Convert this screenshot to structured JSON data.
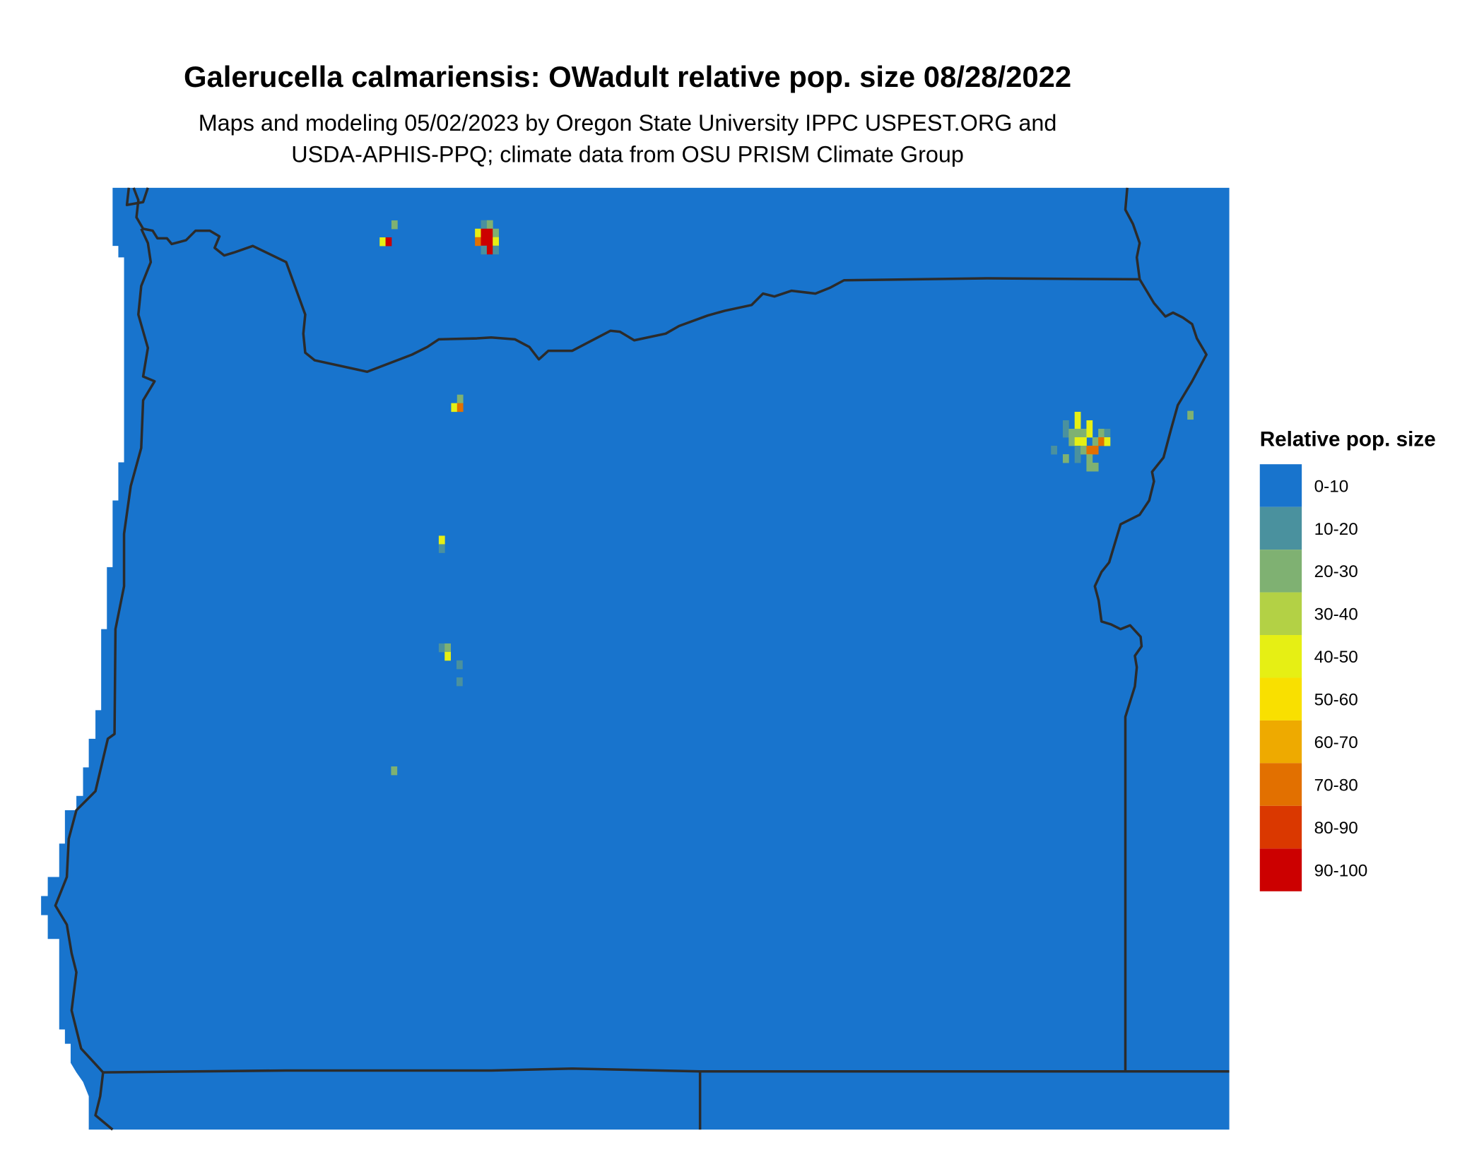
{
  "title": "Galerucella calmariensis: OWadult relative pop. size 08/28/2022",
  "subtitle_line1": "Maps and modeling 05/02/2023 by Oregon State University IPPC USPEST.ORG and",
  "subtitle_line2": "USDA-APHIS-PPQ; climate data from OSU PRISM Climate Group",
  "legend": {
    "title": "Relative pop. size",
    "items": [
      {
        "label": "0-10",
        "color": "#1874CD"
      },
      {
        "label": "10-20",
        "color": "#4A919E"
      },
      {
        "label": "20-30",
        "color": "#7FB172"
      },
      {
        "label": "30-40",
        "color": "#B3D145"
      },
      {
        "label": "40-50",
        "color": "#E6EF14"
      },
      {
        "label": "50-60",
        "color": "#F9E000"
      },
      {
        "label": "60-70",
        "color": "#EEAA00"
      },
      {
        "label": "70-80",
        "color": "#E27000"
      },
      {
        "label": "80-90",
        "color": "#DA3800"
      },
      {
        "label": "90-100",
        "color": "#CC0000"
      }
    ]
  },
  "colors": {
    "background_class": "#1874CD",
    "border": "#2b2b2b"
  }
}
